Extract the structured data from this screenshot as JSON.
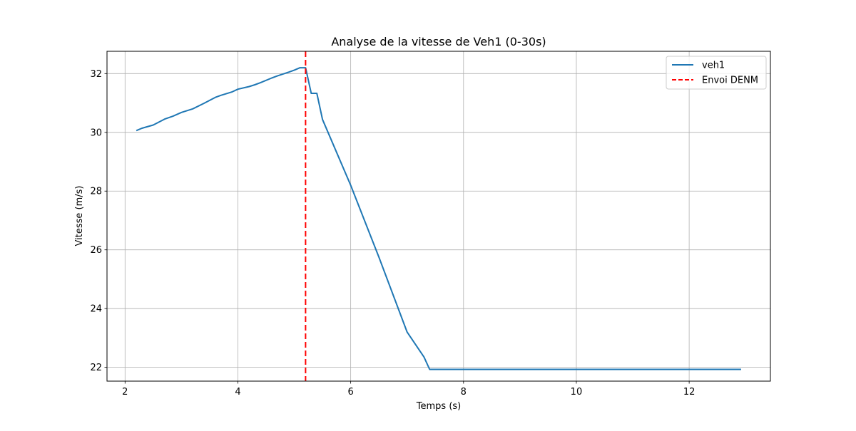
{
  "chart_data": {
    "type": "line",
    "title": "Analyse de la vitesse de Veh1 (0-30s)",
    "xlabel": "Temps (s)",
    "ylabel": "Vitesse (m/s)",
    "xlim": [
      1.68,
      13.44
    ],
    "ylim": [
      21.53,
      32.76
    ],
    "xticks": [
      2,
      4,
      6,
      8,
      10,
      12
    ],
    "yticks": [
      22,
      24,
      26,
      28,
      30,
      32
    ],
    "grid": true,
    "legend_position": "top-right",
    "series": [
      {
        "name": "veh1",
        "color": "#1f77b4",
        "style": "solid",
        "x": [
          2.2,
          2.3,
          2.5,
          2.7,
          2.85,
          3.0,
          3.2,
          3.4,
          3.6,
          3.7,
          3.9,
          4.0,
          4.2,
          4.3,
          4.4,
          4.6,
          4.7,
          4.9,
          5.0,
          5.1,
          5.2,
          5.3,
          5.4,
          5.5,
          6.0,
          6.5,
          7.0,
          7.3,
          7.4,
          8.0,
          10.0,
          12.0,
          12.92
        ],
        "y": [
          30.06,
          30.14,
          30.25,
          30.45,
          30.55,
          30.68,
          30.8,
          30.99,
          31.19,
          31.26,
          31.38,
          31.47,
          31.56,
          31.62,
          31.69,
          31.85,
          31.92,
          32.05,
          32.12,
          32.2,
          32.2,
          31.33,
          31.33,
          30.44,
          28.2,
          25.75,
          23.2,
          22.35,
          21.93,
          21.93,
          21.93,
          21.93,
          21.93
        ]
      },
      {
        "name": "Envoi DENM",
        "color": "#ff0000",
        "style": "dashed",
        "x_value": 5.2
      }
    ]
  }
}
